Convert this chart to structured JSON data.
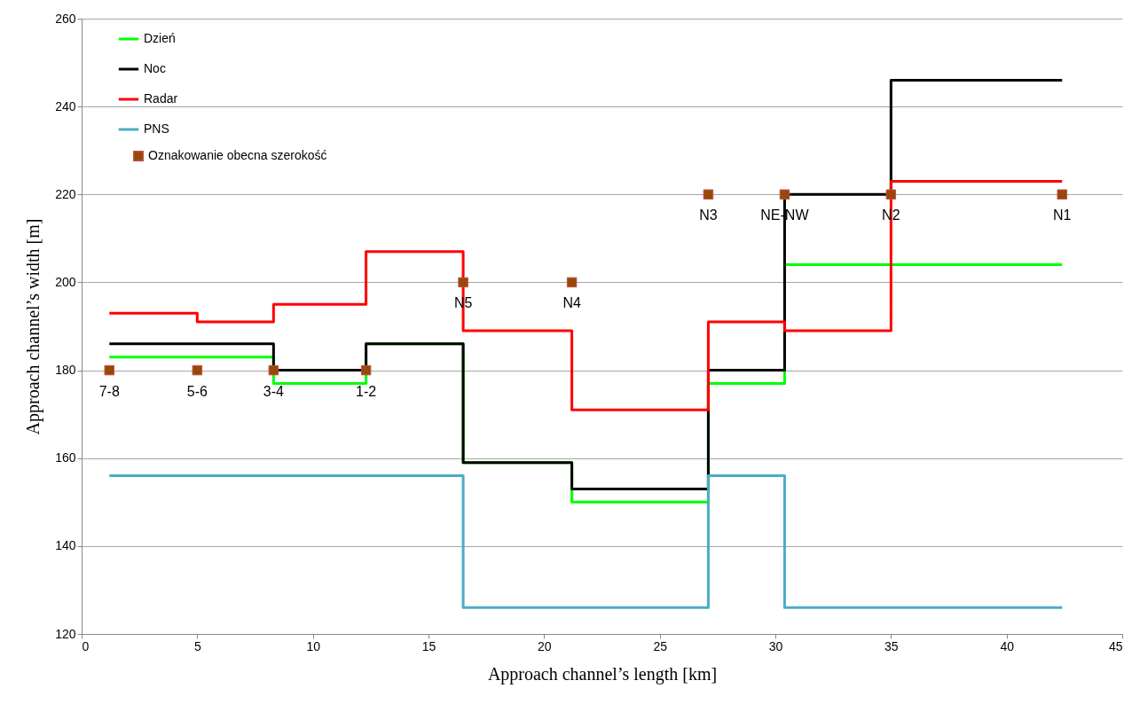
{
  "chart_data": {
    "type": "step",
    "xlabel": "Approach channel’s length [km]",
    "ylabel": "Approach channel’s width [m]",
    "xlim": [
      0,
      45
    ],
    "xticks": [
      0,
      5,
      10,
      15,
      20,
      25,
      30,
      35,
      40,
      45
    ],
    "ylim": [
      120,
      260
    ],
    "yticks": [
      120,
      140,
      160,
      180,
      200,
      220,
      240,
      260
    ],
    "grid": "y",
    "legend": "top left",
    "line_style": "solid",
    "series": [
      {
        "name": "Dzień",
        "color": "#00ff00",
        "x": [
          1.2,
          8.3,
          12.3,
          16.5,
          21.2,
          27.1,
          30.4,
          42.4
        ],
        "values": [
          183,
          177,
          186,
          159,
          150,
          177,
          204,
          204
        ]
      },
      {
        "name": "Noc",
        "color": "#000000",
        "x": [
          1.2,
          8.3,
          12.3,
          16.5,
          21.2,
          27.1,
          30.4,
          35,
          42.4
        ],
        "values": [
          186,
          180,
          186,
          159,
          153,
          180,
          220,
          246,
          246
        ]
      },
      {
        "name": "Radar",
        "color": "#ff0000",
        "x": [
          1.2,
          5,
          8.3,
          12.3,
          16.5,
          21.2,
          27.1,
          30.4,
          35,
          42.4
        ],
        "values": [
          193,
          191,
          195,
          207,
          189,
          171,
          191,
          189,
          223,
          223
        ]
      },
      {
        "name": "PNS",
        "color": "#4bacc6",
        "x": [
          1.2,
          16.5,
          27.1,
          30.4,
          42.4
        ],
        "values": [
          156,
          126,
          156,
          126,
          126
        ]
      },
      {
        "name": "Oznakowanie obecna szerokość",
        "type": "scatter",
        "marker": "square",
        "color": "#984807",
        "x": [
          1.2,
          5,
          8.3,
          12.3,
          16.5,
          21.2,
          27.1,
          30.4,
          35,
          42.4
        ],
        "values": [
          180,
          180,
          180,
          180,
          200,
          200,
          220,
          220,
          220,
          220
        ]
      }
    ],
    "annotations": [
      {
        "text": "7-8",
        "x": 1.2,
        "y": 180
      },
      {
        "text": "5-6",
        "x": 5,
        "y": 180
      },
      {
        "text": "3-4",
        "x": 8.3,
        "y": 180
      },
      {
        "text": "1-2",
        "x": 12.3,
        "y": 180
      },
      {
        "text": "N5",
        "x": 16.5,
        "y": 200
      },
      {
        "text": "N4",
        "x": 21.2,
        "y": 200
      },
      {
        "text": "N3",
        "x": 27.1,
        "y": 220
      },
      {
        "text": "NE-NW",
        "x": 30.4,
        "y": 220
      },
      {
        "text": "N2",
        "x": 35,
        "y": 220
      },
      {
        "text": "N1",
        "x": 42.4,
        "y": 220
      }
    ]
  }
}
